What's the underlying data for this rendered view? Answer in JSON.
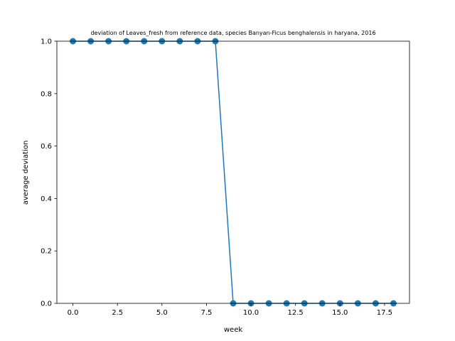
{
  "chart_data": {
    "type": "line",
    "title": "deviation of Leaves_fresh from reference data, species Banyan-Ficus benghalensis in haryana, 2016",
    "xlabel": "week",
    "ylabel": "average deviation",
    "xlim": [
      -0.9,
      18.9
    ],
    "ylim": [
      0.0,
      1.0
    ],
    "xticks": [
      0.0,
      2.5,
      5.0,
      7.5,
      10.0,
      12.5,
      15.0,
      17.5
    ],
    "xtick_labels": [
      "0.0",
      "2.5",
      "5.0",
      "7.5",
      "10.0",
      "12.5",
      "15.0",
      "17.5"
    ],
    "yticks": [
      0.0,
      0.2,
      0.4,
      0.6,
      0.8,
      1.0
    ],
    "ytick_labels": [
      "0.0",
      "0.2",
      "0.4",
      "0.6",
      "0.8",
      "1.0"
    ],
    "grid": false,
    "series": [
      {
        "color": "#1f77b4",
        "marker": "circle",
        "x": [
          0,
          1,
          2,
          3,
          4,
          5,
          6,
          7,
          8,
          9,
          10,
          11,
          12,
          13,
          14,
          15,
          16,
          17,
          18
        ],
        "y": [
          1,
          1,
          1,
          1,
          1,
          1,
          1,
          1,
          1,
          0,
          0,
          0,
          0,
          0,
          0,
          0,
          0,
          0,
          0
        ]
      }
    ]
  }
}
